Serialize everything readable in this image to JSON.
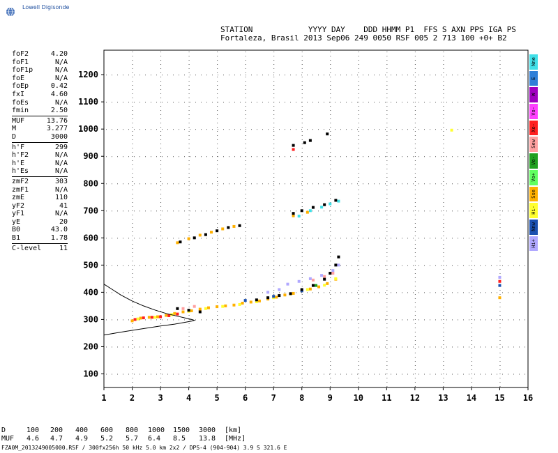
{
  "header": {
    "logo_text": "Lowell Digisonde",
    "station_line1": "STATION            YYYY DAY    DDD HHMM P1  FFS S AXN PPS IGA PS",
    "station_line2": "Fortaleza, Brasil 2013 Sep06 249 0050 RSF 005 2 713 100 +0+ B2"
  },
  "params": [
    {
      "name": "foF2",
      "value": "4.20"
    },
    {
      "name": "foF1",
      "value": "N/A"
    },
    {
      "name": "foF1p",
      "value": "N/A"
    },
    {
      "name": "foE",
      "value": "N/A"
    },
    {
      "name": "foEp",
      "value": "0.42"
    },
    {
      "name": "fxI",
      "value": "4.60"
    },
    {
      "name": "foEs",
      "value": "N/A"
    },
    {
      "name": "fmin",
      "value": "2.50"
    },
    {
      "divider": true
    },
    {
      "name": "MUF",
      "value": "13.76"
    },
    {
      "name": "M",
      "value": "3.277"
    },
    {
      "name": "D",
      "value": "3000"
    },
    {
      "divider": true
    },
    {
      "name": "h'F",
      "value": "299"
    },
    {
      "name": "h'F2",
      "value": "N/A"
    },
    {
      "name": "h'E",
      "value": "N/A"
    },
    {
      "name": "h'Es",
      "value": "N/A"
    },
    {
      "divider": true
    },
    {
      "name": "zmF2",
      "value": "303"
    },
    {
      "name": "zmF1",
      "value": "N/A"
    },
    {
      "name": "zmE",
      "value": "110"
    },
    {
      "name": "yF2",
      "value": "41"
    },
    {
      "name": "yF1",
      "value": "N/A"
    },
    {
      "name": "yE",
      "value": "20"
    },
    {
      "name": "B0",
      "value": "43.0"
    },
    {
      "name": "B1",
      "value": "1.78"
    },
    {
      "divider": true
    },
    {
      "name": "C-level",
      "value": "11"
    }
  ],
  "legend": [
    {
      "label": "Nne",
      "color": "#40e0e8"
    },
    {
      "label": "E",
      "color": "#2f7fd8"
    },
    {
      "label": "W",
      "color": "#a000c0"
    },
    {
      "label": "Vo-",
      "color": "#ff40ff"
    },
    {
      "label": "Xo-",
      "color": "#ff2020"
    },
    {
      "label": "Sew",
      "color": "#ffa0a0"
    },
    {
      "label": "Vo-",
      "color": "#20a020"
    },
    {
      "label": "Vo+",
      "color": "#60ff60"
    },
    {
      "label": "Sse",
      "color": "#ffb000"
    },
    {
      "label": "Hi-",
      "color": "#ffff30"
    },
    {
      "label": "Nnw",
      "color": "#1a50b0"
    },
    {
      "label": "Hi+",
      "color": "#b0a8ff"
    }
  ],
  "bottom_table": {
    "d_label": "D",
    "muf_label": "MUF",
    "d_values": [
      "100",
      "200",
      "400",
      "600",
      "800",
      "1000",
      "1500",
      "3000"
    ],
    "muf_values": [
      "4.6",
      "4.7",
      "4.9",
      "5.2",
      "5.7",
      "6.4",
      "8.5",
      "13.8"
    ],
    "d_unit": "[km]",
    "muf_unit": "[MHz]"
  },
  "footer": "FZA0M_2013249005000.RSF / 300fx256h 50 kHz 5.0 km 2x2 / DPS-4 (904-904)  3.9 S 321.6 E",
  "chart_data": {
    "type": "scatter",
    "title": "",
    "xlabel": "",
    "ylabel": "",
    "xlim": [
      1,
      16
    ],
    "ylim": [
      50,
      1290
    ],
    "x_ticks": [
      "1",
      "2",
      "3",
      "4",
      "5",
      "6",
      "7",
      "8",
      "9",
      "10",
      "11",
      "12",
      "13",
      "14",
      "15",
      "16"
    ],
    "y_ticks": [
      "100",
      "200",
      "300",
      "400",
      "500",
      "600",
      "700",
      "800",
      "900",
      "1000",
      "1100",
      "1200"
    ],
    "grid": true,
    "series": [
      {
        "name": "Sse",
        "color": "#ffb000",
        "points": [
          [
            2.0,
            295
          ],
          [
            2.3,
            305
          ],
          [
            2.6,
            308
          ],
          [
            2.9,
            310
          ],
          [
            3.2,
            315
          ],
          [
            3.5,
            322
          ],
          [
            3.8,
            328
          ],
          [
            4.1,
            332
          ],
          [
            4.4,
            338
          ],
          [
            4.7,
            343
          ],
          [
            5.0,
            347
          ],
          [
            5.3,
            350
          ],
          [
            5.6,
            353
          ],
          [
            5.9,
            360
          ],
          [
            6.2,
            364
          ],
          [
            6.5,
            368
          ],
          [
            6.8,
            375
          ],
          [
            7.1,
            382
          ],
          [
            7.4,
            390
          ],
          [
            7.7,
            396
          ],
          [
            8.0,
            405
          ],
          [
            8.3,
            412
          ],
          [
            8.6,
            420
          ],
          [
            8.9,
            432
          ],
          [
            9.2,
            448
          ],
          [
            3.6,
            582
          ],
          [
            4.0,
            597
          ],
          [
            4.4,
            610
          ],
          [
            4.8,
            621
          ],
          [
            5.2,
            633
          ],
          [
            5.6,
            642
          ],
          [
            7.7,
            681
          ],
          [
            8.2,
            694
          ],
          [
            15.0,
            380
          ]
        ]
      },
      {
        "name": "Hi-",
        "color": "#ffff30",
        "points": [
          [
            2.2,
            302
          ],
          [
            2.8,
            308
          ],
          [
            3.4,
            318
          ],
          [
            4.0,
            330
          ],
          [
            4.6,
            340
          ],
          [
            5.2,
            348
          ],
          [
            5.8,
            355
          ],
          [
            6.4,
            365
          ],
          [
            7.0,
            380
          ],
          [
            7.6,
            394
          ],
          [
            8.2,
            410
          ],
          [
            8.8,
            426
          ],
          [
            9.2,
            450
          ],
          [
            13.3,
            996
          ]
        ]
      },
      {
        "name": "Xo-",
        "color": "#ff2020",
        "points": [
          [
            2.1,
            300
          ],
          [
            2.4,
            306
          ],
          [
            2.7,
            308
          ],
          [
            3.0,
            310
          ],
          [
            3.3,
            314
          ],
          [
            3.6,
            320
          ],
          [
            15.0,
            440
          ],
          [
            7.7,
            925
          ]
        ]
      },
      {
        "name": "Hi+",
        "color": "#b0a8ff",
        "points": [
          [
            7.5,
            430
          ],
          [
            7.9,
            440
          ],
          [
            8.3,
            450
          ],
          [
            8.7,
            462
          ],
          [
            9.1,
            480
          ],
          [
            9.3,
            500
          ],
          [
            6.8,
            400
          ],
          [
            7.2,
            410
          ],
          [
            15.0,
            455
          ]
        ]
      },
      {
        "name": "Sew",
        "color": "#ffa0a0",
        "points": [
          [
            8.4,
            445
          ],
          [
            8.8,
            458
          ],
          [
            9.1,
            470
          ],
          [
            4.2,
            348
          ],
          [
            3.8,
            340
          ]
        ]
      },
      {
        "name": "Nne",
        "color": "#40e0e8",
        "points": [
          [
            7.9,
            680
          ],
          [
            8.3,
            700
          ],
          [
            8.7,
            713
          ],
          [
            9.0,
            725
          ],
          [
            9.3,
            735
          ]
        ]
      },
      {
        "name": "Nnw",
        "color": "#1a50b0",
        "points": [
          [
            6.0,
            370
          ],
          [
            7.0,
            385
          ],
          [
            8.0,
            405
          ],
          [
            15.0,
            425
          ]
        ]
      },
      {
        "name": "Vo-",
        "color": "#20a020",
        "points": [
          [
            8.5,
            425
          ]
        ]
      },
      {
        "name": "black",
        "color": "#000000",
        "points": [
          [
            3.6,
            340
          ],
          [
            4.0,
            334
          ],
          [
            4.4,
            328
          ],
          [
            6.4,
            372
          ],
          [
            6.8,
            380
          ],
          [
            7.2,
            388
          ],
          [
            7.6,
            395
          ],
          [
            8.0,
            410
          ],
          [
            8.4,
            425
          ],
          [
            8.8,
            448
          ],
          [
            9.0,
            470
          ],
          [
            9.2,
            500
          ],
          [
            9.3,
            530
          ],
          [
            3.7,
            585
          ],
          [
            4.2,
            600
          ],
          [
            4.6,
            612
          ],
          [
            5.0,
            626
          ],
          [
            5.4,
            638
          ],
          [
            5.8,
            645
          ],
          [
            7.7,
            690
          ],
          [
            8.0,
            700
          ],
          [
            8.4,
            712
          ],
          [
            8.8,
            722
          ],
          [
            9.2,
            738
          ],
          [
            7.7,
            940
          ],
          [
            8.1,
            950
          ],
          [
            8.3,
            958
          ],
          [
            8.9,
            982
          ]
        ]
      }
    ],
    "curve": {
      "name": "profile",
      "color": "#000000",
      "points": [
        [
          1.0,
          430
        ],
        [
          1.3,
          410
        ],
        [
          1.6,
          390
        ],
        [
          2.0,
          368
        ],
        [
          2.4,
          350
        ],
        [
          2.8,
          335
        ],
        [
          3.2,
          322
        ],
        [
          3.6,
          312
        ],
        [
          3.9,
          305
        ],
        [
          4.1,
          300
        ],
        [
          4.2,
          297
        ],
        [
          4.1,
          294
        ],
        [
          3.9,
          290
        ],
        [
          3.5,
          283
        ],
        [
          3.0,
          276
        ],
        [
          2.5,
          268
        ],
        [
          2.0,
          260
        ],
        [
          1.5,
          252
        ],
        [
          1.0,
          243
        ]
      ]
    }
  }
}
